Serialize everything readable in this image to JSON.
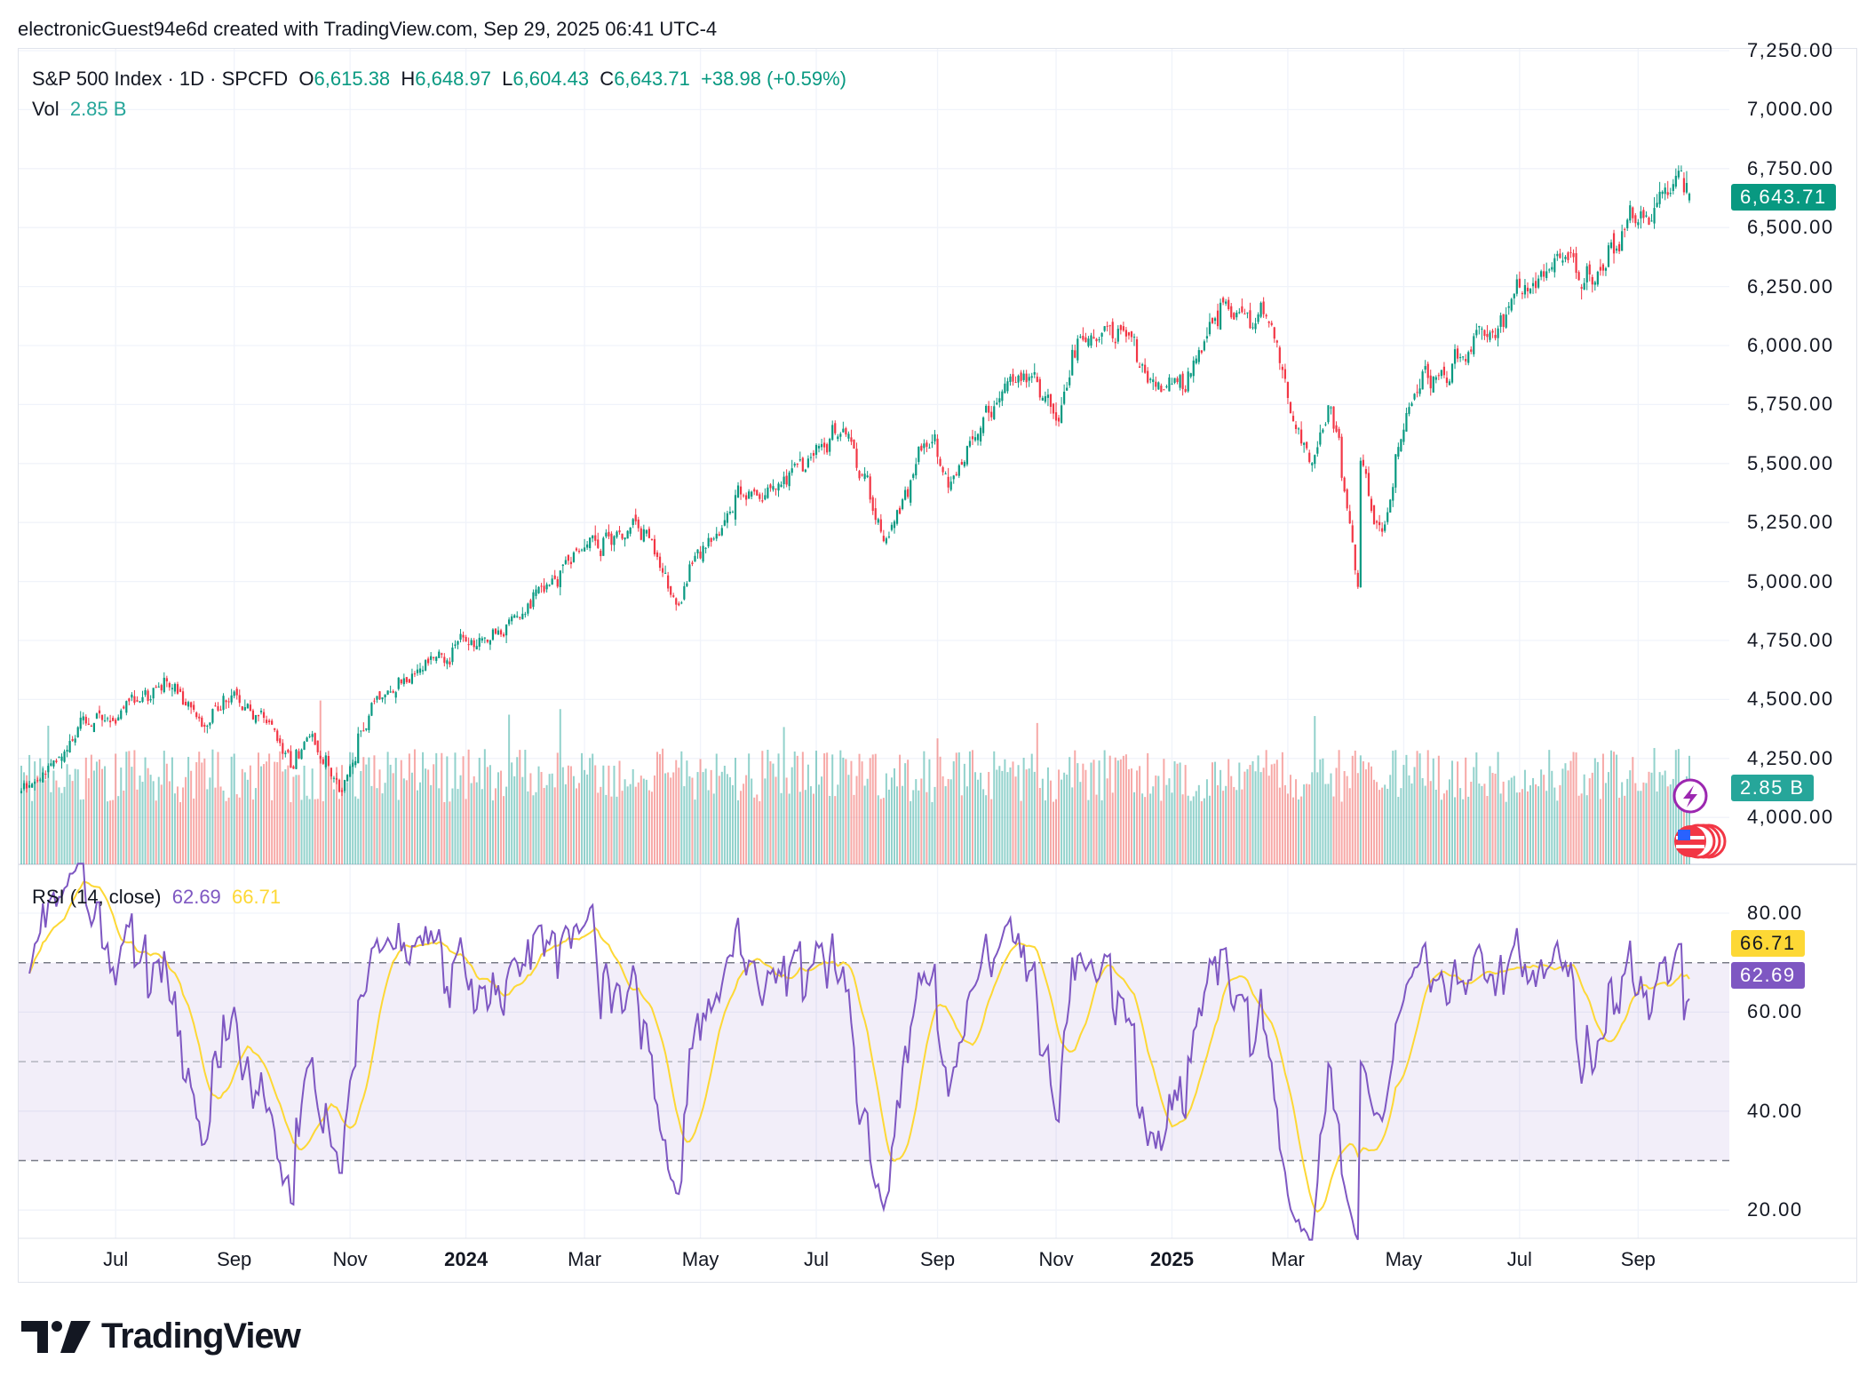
{
  "attribution": "electronicGuest94e6d created with TradingView.com, Sep 29, 2025 06:41 UTC-4",
  "legend": {
    "symbol": "S&P 500 Index · 1D · SPCFD",
    "o_label": "O",
    "open": "6,615.38",
    "h_label": "H",
    "high": "6,648.97",
    "l_label": "L",
    "low": "6,604.43",
    "c_label": "C",
    "close": "6,643.71",
    "change": "+38.98 (+0.59%)",
    "vol_label": "Vol",
    "vol": "2.85 B"
  },
  "rsi_legend": {
    "label": "RSI (14, close)",
    "rsi": "62.69",
    "ma": "66.71"
  },
  "price_axis": [
    "7,250.00",
    "7,000.00",
    "6,750.00",
    "6,500.00",
    "6,250.00",
    "6,000.00",
    "5,750.00",
    "5,500.00",
    "5,250.00",
    "5,000.00",
    "4,750.00",
    "4,500.00",
    "4,250.00",
    "4,000.00"
  ],
  "rsi_axis": [
    "80.00",
    "60.00",
    "40.00",
    "20.00"
  ],
  "time_axis": [
    {
      "label": "Jul",
      "date": "2023-07",
      "bold": false
    },
    {
      "label": "Sep",
      "date": "2023-09",
      "bold": false
    },
    {
      "label": "Nov",
      "date": "2023-11",
      "bold": false
    },
    {
      "label": "2024",
      "date": "2024-01",
      "bold": true
    },
    {
      "label": "Mar",
      "date": "2024-03",
      "bold": false
    },
    {
      "label": "May",
      "date": "2024-05",
      "bold": false
    },
    {
      "label": "Jul",
      "date": "2024-07",
      "bold": false
    },
    {
      "label": "Sep",
      "date": "2024-09",
      "bold": false
    },
    {
      "label": "Nov",
      "date": "2024-11",
      "bold": false
    },
    {
      "label": "2025",
      "date": "2025-01",
      "bold": true
    },
    {
      "label": "Mar",
      "date": "2025-03",
      "bold": false
    },
    {
      "label": "May",
      "date": "2025-05",
      "bold": false
    },
    {
      "label": "Jul",
      "date": "2025-07",
      "bold": false
    },
    {
      "label": "Sep",
      "date": "2025-09",
      "bold": false
    }
  ],
  "badges": {
    "price": "6,643.71",
    "volume": "2.85 B",
    "rsi_ma": "66.71",
    "rsi": "62.69"
  },
  "icons": {
    "events": "lightning-icon",
    "economic": "us-flag-icon"
  },
  "logo": "TradingView",
  "colors": {
    "up": "#089981",
    "down": "#f23645",
    "vol_up": "#26a69a",
    "vol_down": "#ef5350",
    "rsi": "#7e57c2",
    "rsi_ma": "#fdd835",
    "rsi_band": "#7e57c2"
  },
  "chart_data": {
    "type": "candlestick",
    "interval": "1D",
    "title": "S&P 500 Index · 1D · SPCFD",
    "x_range": [
      "2023-05-15",
      "2025-09-26"
    ],
    "ylim": [
      3800,
      7262
    ],
    "grid": true,
    "approx_closes": [
      {
        "date": "2023-05-15",
        "close": 4120
      },
      {
        "date": "2023-06-01",
        "close": 4200
      },
      {
        "date": "2023-06-15",
        "close": 4410
      },
      {
        "date": "2023-07-03",
        "close": 4450
      },
      {
        "date": "2023-07-31",
        "close": 4590
      },
      {
        "date": "2023-08-18",
        "close": 4370
      },
      {
        "date": "2023-09-01",
        "close": 4515
      },
      {
        "date": "2023-09-15",
        "close": 4450
      },
      {
        "date": "2023-10-03",
        "close": 4230
      },
      {
        "date": "2023-10-12",
        "close": 4350
      },
      {
        "date": "2023-10-27",
        "close": 4120
      },
      {
        "date": "2023-11-15",
        "close": 4500
      },
      {
        "date": "2023-12-01",
        "close": 4590
      },
      {
        "date": "2023-12-28",
        "close": 4780
      },
      {
        "date": "2024-01-05",
        "close": 4700
      },
      {
        "date": "2024-02-01",
        "close": 4900
      },
      {
        "date": "2024-03-01",
        "close": 5130
      },
      {
        "date": "2024-03-28",
        "close": 5250
      },
      {
        "date": "2024-04-19",
        "close": 4970
      },
      {
        "date": "2024-05-15",
        "close": 5300
      },
      {
        "date": "2024-06-14",
        "close": 5430
      },
      {
        "date": "2024-07-16",
        "close": 5660
      },
      {
        "date": "2024-08-05",
        "close": 5190
      },
      {
        "date": "2024-08-30",
        "close": 5650
      },
      {
        "date": "2024-09-06",
        "close": 5410
      },
      {
        "date": "2024-09-30",
        "close": 5760
      },
      {
        "date": "2024-10-18",
        "close": 5860
      },
      {
        "date": "2024-11-04",
        "close": 5710
      },
      {
        "date": "2024-11-11",
        "close": 6000
      },
      {
        "date": "2024-12-06",
        "close": 6090
      },
      {
        "date": "2024-12-19",
        "close": 5870
      },
      {
        "date": "2025-01-10",
        "close": 5830
      },
      {
        "date": "2025-01-23",
        "close": 6120
      },
      {
        "date": "2025-02-19",
        "close": 6145
      },
      {
        "date": "2025-03-13",
        "close": 5520
      },
      {
        "date": "2025-03-25",
        "close": 5780
      },
      {
        "date": "2025-04-08",
        "close": 4980
      },
      {
        "date": "2025-04-09",
        "close": 5450
      },
      {
        "date": "2025-04-21",
        "close": 5160
      },
      {
        "date": "2025-05-02",
        "close": 5690
      },
      {
        "date": "2025-05-13",
        "close": 5890
      },
      {
        "date": "2025-06-06",
        "close": 6000
      },
      {
        "date": "2025-06-30",
        "close": 6200
      },
      {
        "date": "2025-07-28",
        "close": 6390
      },
      {
        "date": "2025-08-01",
        "close": 6240
      },
      {
        "date": "2025-08-28",
        "close": 6500
      },
      {
        "date": "2025-09-22",
        "close": 6690
      },
      {
        "date": "2025-09-26",
        "close": 6643.71
      }
    ],
    "last_bar": {
      "date": "2025-09-26",
      "open": 6615.38,
      "high": 6648.97,
      "low": 6604.43,
      "close": 6643.71,
      "change": 38.98,
      "change_pct": 0.59,
      "volume_b": 2.85
    },
    "rsi": {
      "period": 14,
      "source": "close",
      "ma_period": 14,
      "overbought": 70,
      "middle": 50,
      "oversold": 30,
      "last": 62.69,
      "ma_last": 66.71,
      "ylim": [
        14,
        90
      ]
    }
  }
}
